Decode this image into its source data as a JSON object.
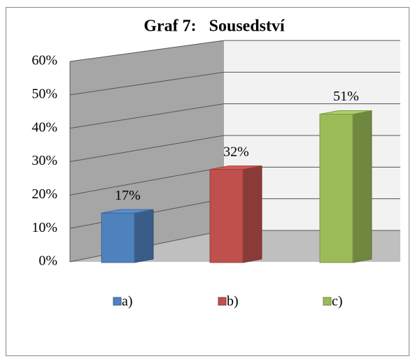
{
  "chart_data": {
    "type": "bar3d",
    "title": "Graf 7:   Sousedství",
    "categories": [
      "a)",
      "b)",
      "c)"
    ],
    "values": [
      17,
      32,
      51
    ],
    "value_labels": [
      "17%",
      "32%",
      "51%"
    ],
    "colors": [
      "#4f81bd",
      "#c0504d",
      "#9bbb59"
    ],
    "ylim": [
      0,
      60
    ],
    "yticks": [
      {
        "value": 0,
        "label": "0%"
      },
      {
        "value": 10,
        "label": "10%"
      },
      {
        "value": 20,
        "label": "20%"
      },
      {
        "value": 30,
        "label": "30%"
      },
      {
        "value": 40,
        "label": "40%"
      },
      {
        "value": 50,
        "label": "50%"
      },
      {
        "value": 60,
        "label": "60%"
      }
    ],
    "grid": true,
    "legend": "bottom"
  }
}
